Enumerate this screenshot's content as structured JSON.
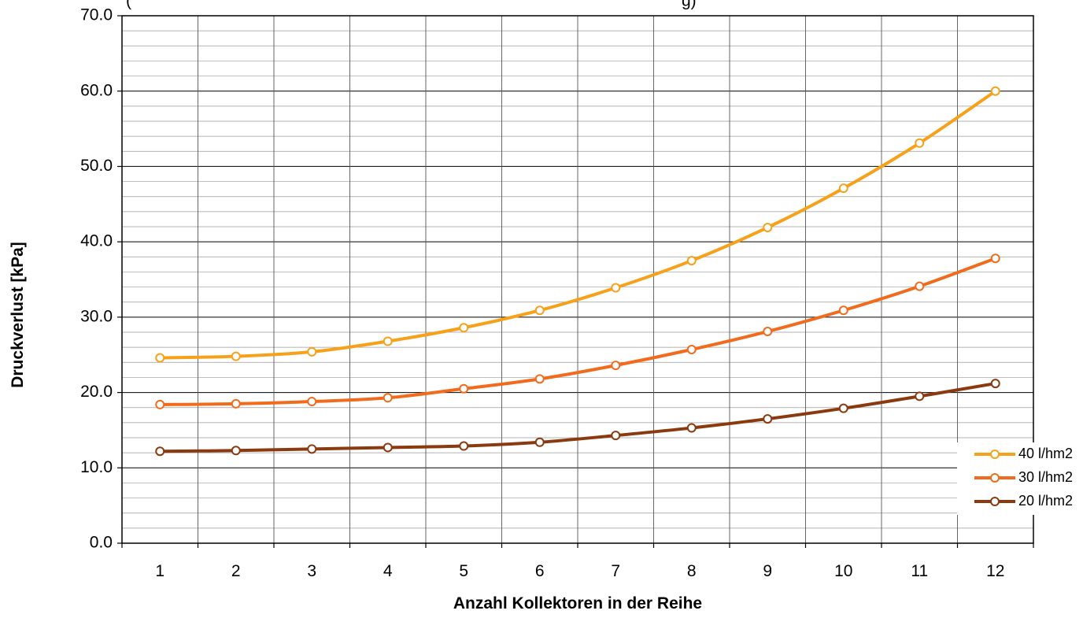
{
  "chart_data": {
    "type": "line",
    "title": "(",
    "title_tail": "g)",
    "xlabel": "Anzahl Kollektoren in der Reihe",
    "ylabel": "Druckverlust [kPa]",
    "ylim": [
      0,
      70
    ],
    "yticks": [
      "0.0",
      "10.0",
      "20.0",
      "30.0",
      "40.0",
      "50.0",
      "60.0",
      "70.0"
    ],
    "categories": [
      "1",
      "2",
      "3",
      "4",
      "5",
      "6",
      "7",
      "8",
      "9",
      "10",
      "11",
      "12"
    ],
    "grid": "major and minor horizontal, vertical at category boundaries",
    "legend_position": "right",
    "series": [
      {
        "name": "40 l/hm2",
        "color": "#F7A11A",
        "values": [
          24.6,
          24.8,
          25.4,
          26.8,
          28.6,
          30.9,
          33.9,
          37.5,
          41.9,
          47.1,
          53.1,
          60.0
        ]
      },
      {
        "name": "30 l/hm2",
        "color": "#F26B1D",
        "values": [
          18.4,
          18.5,
          18.8,
          19.3,
          20.5,
          21.8,
          23.6,
          25.7,
          28.1,
          30.9,
          34.1,
          37.8
        ]
      },
      {
        "name": "20 l/hm2",
        "color": "#8B3A0F",
        "values": [
          12.2,
          12.3,
          12.5,
          12.7,
          12.9,
          13.4,
          14.3,
          15.3,
          16.5,
          17.9,
          19.5,
          21.2
        ]
      }
    ]
  }
}
